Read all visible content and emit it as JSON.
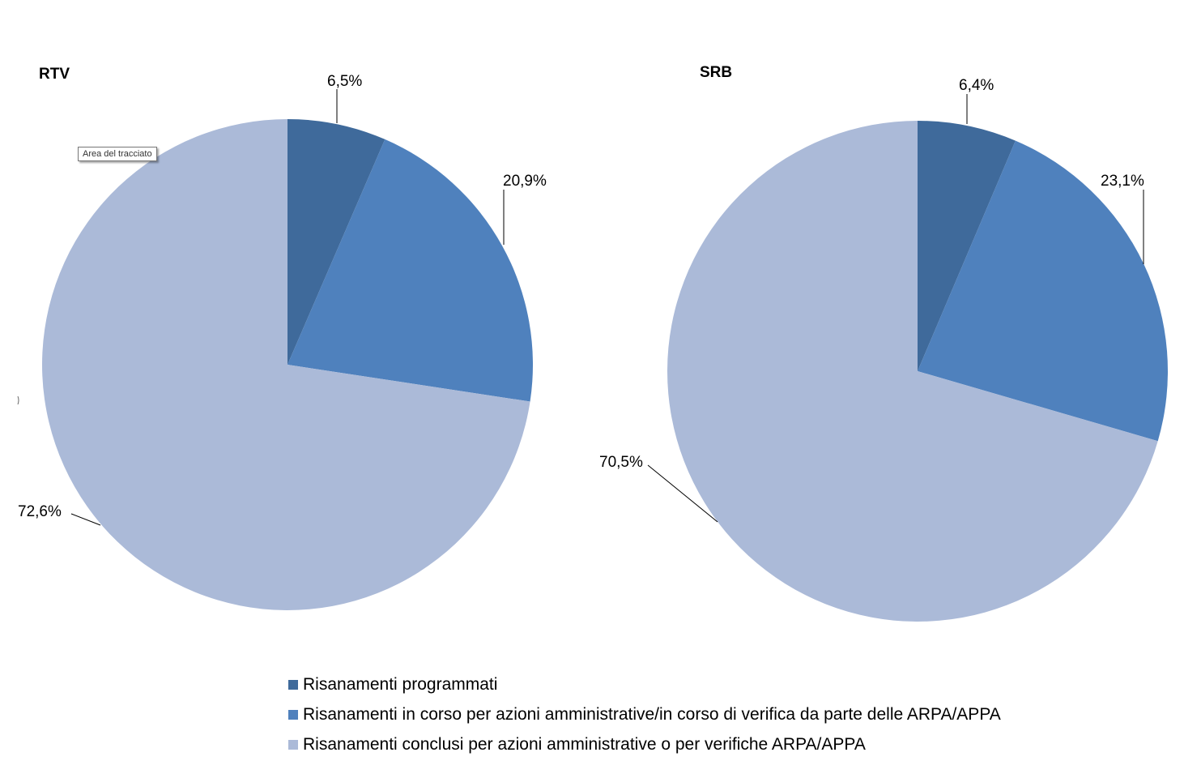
{
  "colors": {
    "programmati": "#3f6a9b",
    "in_corso": "#4f81bd",
    "conclusi": "#abbad8",
    "leader": "#000000"
  },
  "tooltip": "Area del tracciato",
  "legend": {
    "items": [
      {
        "label": "Risanamenti programmati",
        "color": "#3f6a9b"
      },
      {
        "label": "Risanamenti in corso per azioni amministrative/in corso di verifica da parte delle ARPA/APPA",
        "color": "#4f81bd"
      },
      {
        "label": "Risanamenti conclusi per azioni amministrative o per verifiche ARPA/APPA",
        "color": "#abbad8"
      }
    ]
  },
  "chart_data": [
    {
      "type": "pie",
      "title": "RTV",
      "categories": [
        "Risanamenti programmati",
        "Risanamenti in corso per azioni amministrative/in corso di verifica da parte delle ARPA/APPA",
        "Risanamenti conclusi per azioni amministrative o per verifiche ARPA/APPA"
      ],
      "values": [
        6.5,
        20.9,
        72.6
      ],
      "labels": [
        "6,5%",
        "20,9%",
        "72,6%"
      ],
      "legend_position": "bottom"
    },
    {
      "type": "pie",
      "title": "SRB",
      "categories": [
        "Risanamenti programmati",
        "Risanamenti in corso per azioni amministrative/in corso di verifica da parte delle ARPA/APPA",
        "Risanamenti conclusi per azioni amministrative o per verifiche ARPA/APPA"
      ],
      "values": [
        6.4,
        23.1,
        70.5
      ],
      "labels": [
        "6,4%",
        "23,1%",
        "70,5%"
      ],
      "legend_position": "bottom"
    }
  ]
}
